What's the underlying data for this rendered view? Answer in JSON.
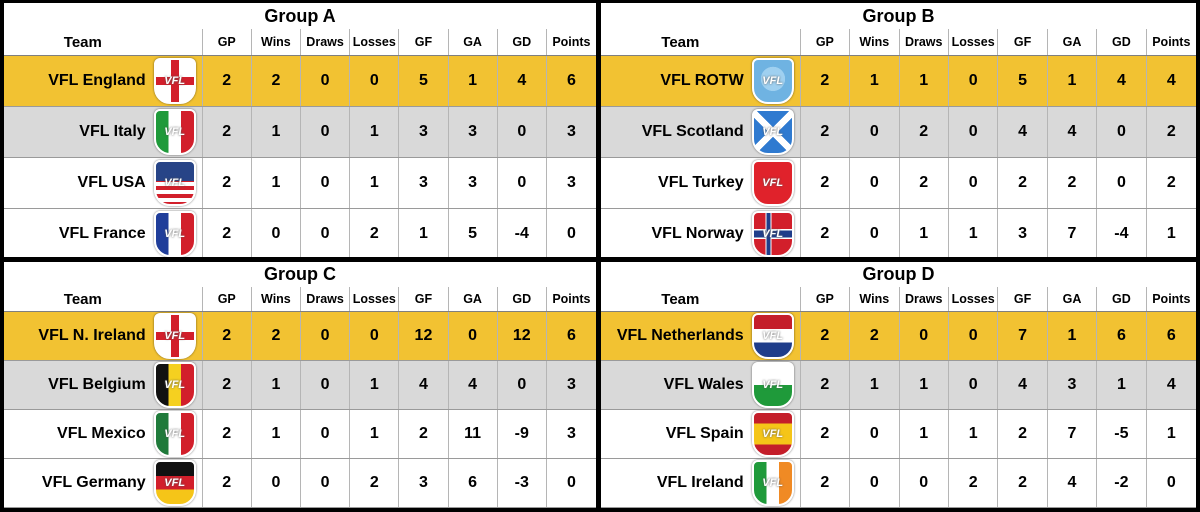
{
  "headers": {
    "team": "Team",
    "gp": "GP",
    "wins": "Wins",
    "draws": "Draws",
    "losses": "Losses",
    "gf": "GF",
    "ga": "GA",
    "gd": "GD",
    "points": "Points"
  },
  "crest_text": "VFL",
  "groups": [
    {
      "title": "Group A",
      "rows": [
        {
          "team": "VFL England",
          "crest": "england-crest-icon",
          "gp": "2",
          "wins": "2",
          "draws": "0",
          "losses": "0",
          "gf": "5",
          "ga": "1",
          "gd": "4",
          "points": "6",
          "highlight": "gold"
        },
        {
          "team": "VFL Italy",
          "crest": "italy-crest-icon",
          "gp": "2",
          "wins": "1",
          "draws": "0",
          "losses": "1",
          "gf": "3",
          "ga": "3",
          "gd": "0",
          "points": "3",
          "highlight": "grey"
        },
        {
          "team": "VFL USA",
          "crest": "usa-crest-icon",
          "gp": "2",
          "wins": "1",
          "draws": "0",
          "losses": "1",
          "gf": "3",
          "ga": "3",
          "gd": "0",
          "points": "3",
          "highlight": "white"
        },
        {
          "team": "VFL France",
          "crest": "france-crest-icon",
          "gp": "2",
          "wins": "0",
          "draws": "0",
          "losses": "2",
          "gf": "1",
          "ga": "5",
          "gd": "-4",
          "points": "0",
          "highlight": "white"
        }
      ]
    },
    {
      "title": "Group B",
      "rows": [
        {
          "team": "VFL ROTW",
          "crest": "rotw-crest-icon",
          "gp": "2",
          "wins": "1",
          "draws": "1",
          "losses": "0",
          "gf": "5",
          "ga": "1",
          "gd": "4",
          "points": "4",
          "highlight": "gold"
        },
        {
          "team": "VFL Scotland",
          "crest": "scotland-crest-icon",
          "gp": "2",
          "wins": "0",
          "draws": "2",
          "losses": "0",
          "gf": "4",
          "ga": "4",
          "gd": "0",
          "points": "2",
          "highlight": "grey"
        },
        {
          "team": "VFL Turkey",
          "crest": "turkey-crest-icon",
          "gp": "2",
          "wins": "0",
          "draws": "2",
          "losses": "0",
          "gf": "2",
          "ga": "2",
          "gd": "0",
          "points": "2",
          "highlight": "white"
        },
        {
          "team": "VFL Norway",
          "crest": "norway-crest-icon",
          "gp": "2",
          "wins": "0",
          "draws": "1",
          "losses": "1",
          "gf": "3",
          "ga": "7",
          "gd": "-4",
          "points": "1",
          "highlight": "white"
        }
      ]
    },
    {
      "title": "Group C",
      "rows": [
        {
          "team": "VFL N. Ireland",
          "crest": "northern-ireland-crest-icon",
          "gp": "2",
          "wins": "2",
          "draws": "0",
          "losses": "0",
          "gf": "12",
          "ga": "0",
          "gd": "12",
          "points": "6",
          "highlight": "gold"
        },
        {
          "team": "VFL Belgium",
          "crest": "belgium-crest-icon",
          "gp": "2",
          "wins": "1",
          "draws": "0",
          "losses": "1",
          "gf": "4",
          "ga": "4",
          "gd": "0",
          "points": "3",
          "highlight": "grey"
        },
        {
          "team": "VFL Mexico",
          "crest": "mexico-crest-icon",
          "gp": "2",
          "wins": "1",
          "draws": "0",
          "losses": "1",
          "gf": "2",
          "ga": "11",
          "gd": "-9",
          "points": "3",
          "highlight": "white"
        },
        {
          "team": "VFL Germany",
          "crest": "germany-crest-icon",
          "gp": "2",
          "wins": "0",
          "draws": "0",
          "losses": "2",
          "gf": "3",
          "ga": "6",
          "gd": "-3",
          "points": "0",
          "highlight": "white"
        }
      ]
    },
    {
      "title": "Group D",
      "rows": [
        {
          "team": "VFL Netherlands",
          "crest": "netherlands-crest-icon",
          "gp": "2",
          "wins": "2",
          "draws": "0",
          "losses": "0",
          "gf": "7",
          "ga": "1",
          "gd": "6",
          "points": "6",
          "highlight": "gold"
        },
        {
          "team": "VFL Wales",
          "crest": "wales-crest-icon",
          "gp": "2",
          "wins": "1",
          "draws": "1",
          "losses": "0",
          "gf": "4",
          "ga": "3",
          "gd": "1",
          "points": "4",
          "highlight": "grey"
        },
        {
          "team": "VFL Spain",
          "crest": "spain-crest-icon",
          "gp": "2",
          "wins": "0",
          "draws": "1",
          "losses": "1",
          "gf": "2",
          "ga": "7",
          "gd": "-5",
          "points": "1",
          "highlight": "white"
        },
        {
          "team": "VFL Ireland",
          "crest": "ireland-crest-icon",
          "gp": "2",
          "wins": "0",
          "draws": "0",
          "losses": "2",
          "gf": "2",
          "ga": "4",
          "gd": "-2",
          "points": "0",
          "highlight": "white"
        }
      ]
    }
  ]
}
